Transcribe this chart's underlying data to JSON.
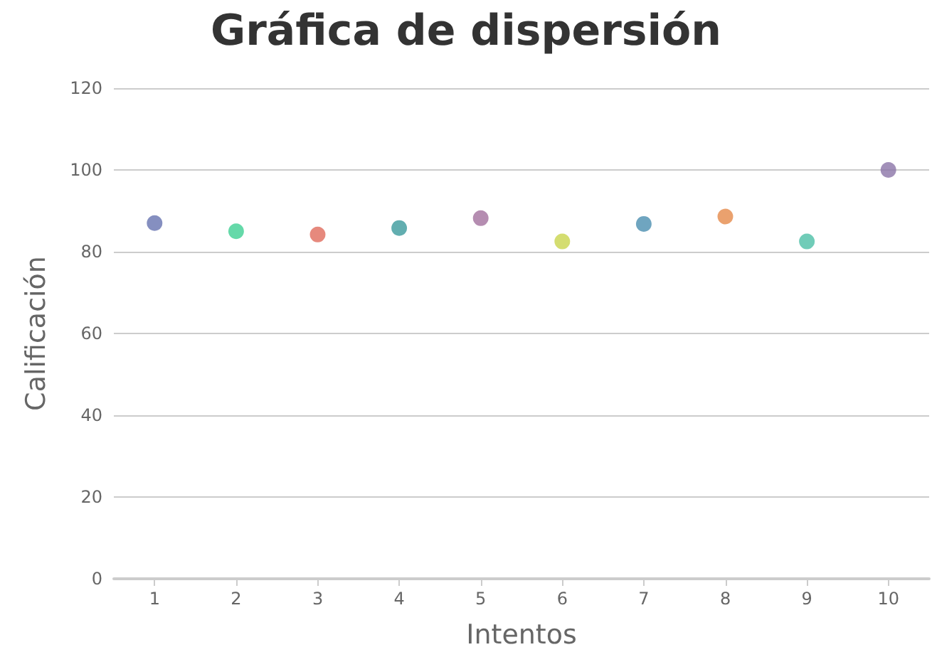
{
  "chart_data": {
    "type": "scatter",
    "title": "Gráfica de dispersión",
    "xlabel": "Intentos",
    "ylabel": "Calificación",
    "categories": [
      "1",
      "2",
      "3",
      "4",
      "5",
      "6",
      "7",
      "8",
      "9",
      "10"
    ],
    "values": [
      87,
      85,
      84.2,
      85.8,
      88.2,
      82.5,
      86.8,
      88.6,
      82.5,
      100
    ],
    "colors": [
      "#6673b0",
      "#3ecf94",
      "#e06c5d",
      "#3b9a9c",
      "#a2719d",
      "#c9d44c",
      "#4b8fb0",
      "#e5894a",
      "#4cbfa6",
      "#8b74a8"
    ],
    "ylim": [
      0,
      120
    ],
    "yticks": [
      0,
      20,
      40,
      60,
      80,
      100,
      120
    ],
    "grid": "y",
    "marker": "circle"
  }
}
